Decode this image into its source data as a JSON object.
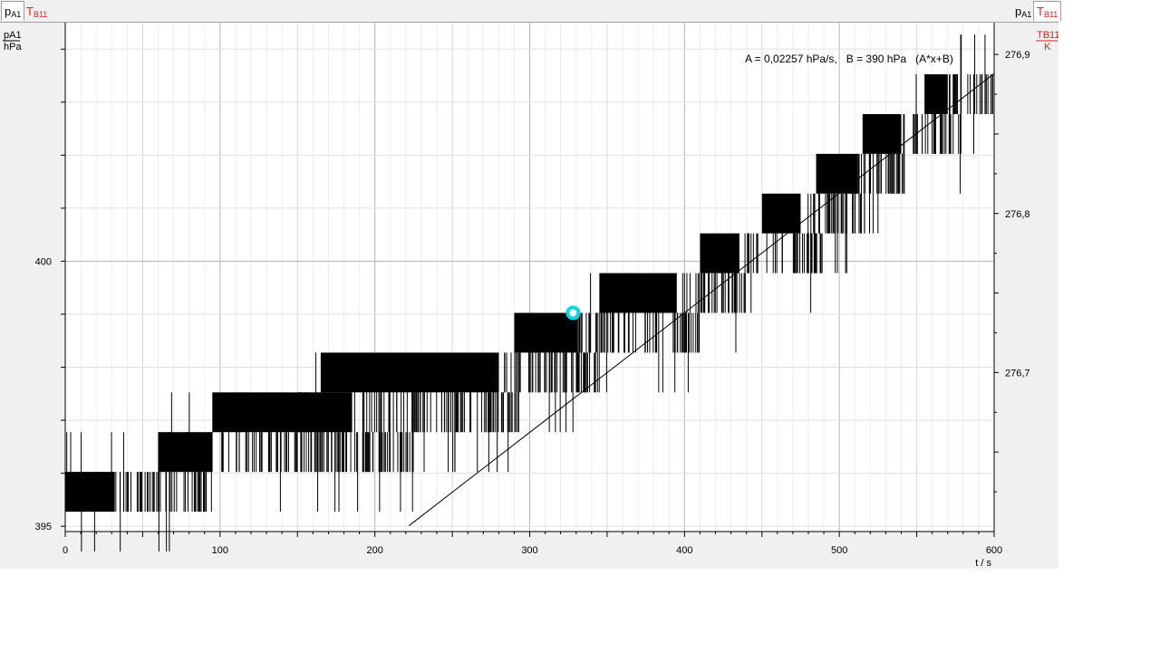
{
  "tabs_left": [
    {
      "main": "p",
      "sub": "A1",
      "color": "#000000",
      "active": true
    },
    {
      "main": "T",
      "sub": "B11",
      "color": "#e02020",
      "active": false
    }
  ],
  "tabs_right": [
    {
      "main": "p",
      "sub": "A1",
      "color": "#000000",
      "active": false
    },
    {
      "main": "T",
      "sub": "B11",
      "color": "#e02020",
      "active": true
    }
  ],
  "left_axis_unit": {
    "quantity": "pA1",
    "unit": "hPa"
  },
  "right_axis_unit": {
    "quantity": "TB11",
    "unit": "K"
  },
  "x_axis_label": "t / s",
  "fit_annotation": "A = 0,02257 hPa/s,   B = 390 hPa   (A*x+B)",
  "colors": {
    "data": "#000000",
    "grid": "#c8c8c8",
    "cursor": "#00d8e8",
    "tick_label_right": "#000000"
  },
  "chart_data": {
    "type": "line",
    "xlabel": "t / s",
    "ylabel_left": "pA1 / hPa",
    "ylabel_right": "TB11 / K",
    "xlim": [
      0,
      600
    ],
    "ylim_left": [
      394.9,
      404.5
    ],
    "ylim_right": [
      276.6,
      276.92
    ],
    "x_ticks": [
      0,
      100,
      200,
      300,
      400,
      500,
      600
    ],
    "y_ticks_left": [
      "395",
      "400"
    ],
    "y_ticks_right": [
      "276,7",
      "276,8",
      "276,9"
    ],
    "grid": true,
    "series": [
      {
        "name": "TB11",
        "axis": "right",
        "resolution_K": 0.025,
        "steps": [
          {
            "x_start": 0,
            "x_end": 95,
            "low": 276.6125,
            "high": 276.6375
          },
          {
            "x_start": 60,
            "x_end": 225,
            "low": 276.6375,
            "high": 276.6625
          },
          {
            "x_start": 150,
            "x_end": 295,
            "low": 276.6625,
            "high": 276.6875
          },
          {
            "x_start": 275,
            "x_end": 345,
            "low": 276.6875,
            "high": 276.7125
          },
          {
            "x_start": 330,
            "x_end": 410,
            "low": 276.7125,
            "high": 276.7375
          },
          {
            "x_start": 400,
            "x_end": 440,
            "low": 276.7375,
            "high": 276.7625
          },
          {
            "x_start": 435,
            "x_end": 490,
            "low": 276.7625,
            "high": 276.7875
          },
          {
            "x_start": 480,
            "x_end": 520,
            "low": 276.7875,
            "high": 276.8125
          },
          {
            "x_start": 505,
            "x_end": 545,
            "low": 276.8125,
            "high": 276.8375
          },
          {
            "x_start": 545,
            "x_end": 580,
            "low": 276.8375,
            "high": 276.8625
          },
          {
            "x_start": 570,
            "x_end": 600,
            "low": 276.8625,
            "high": 276.8875
          }
        ]
      },
      {
        "name": "fit A*x+B",
        "axis": "left",
        "x": [
          222,
          600
        ],
        "y": [
          395.01,
          403.54
        ]
      }
    ],
    "cursor": {
      "x": 328,
      "y_right": 276.7375
    }
  }
}
